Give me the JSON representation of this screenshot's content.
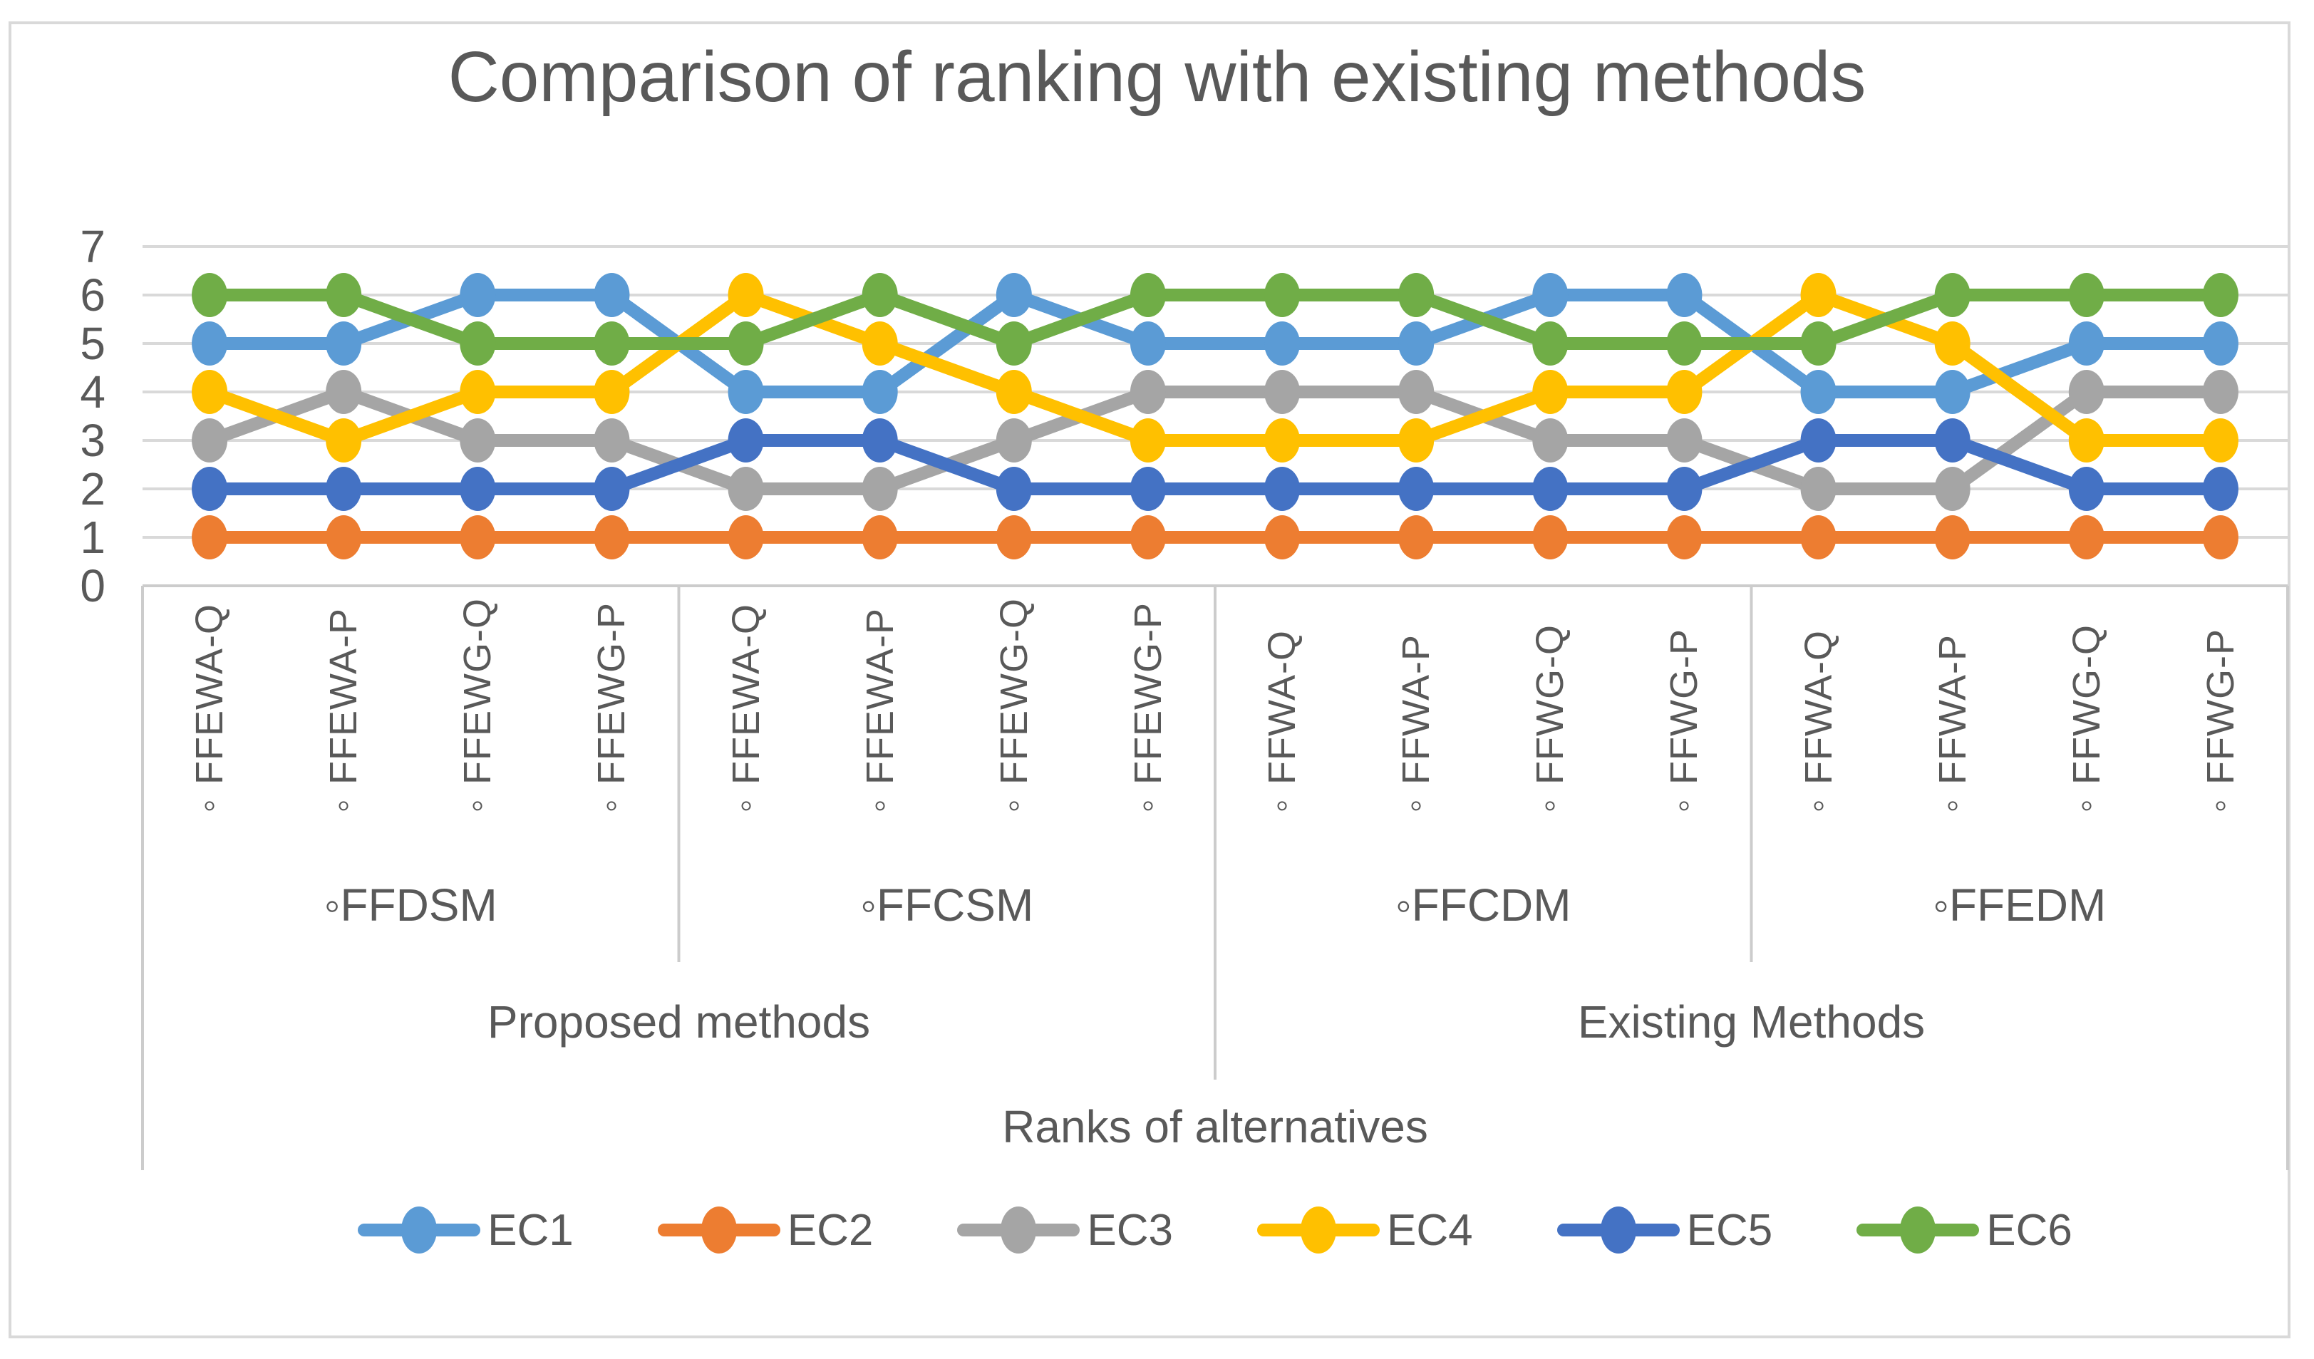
{
  "title": "Comparison of ranking with existing methods",
  "chart_data": {
    "type": "line",
    "title": "Comparison of ranking with existing methods",
    "xlabel": "Ranks of alternatives",
    "ylabel": "",
    "ylim": [
      0,
      7
    ],
    "yticks": [
      0,
      1,
      2,
      3,
      4,
      5,
      6,
      7
    ],
    "grid": true,
    "legend_position": "bottom",
    "marker": "oval",
    "text_color": "#595959",
    "grid_color": "#d9d9d9",
    "axis_color": "#cccccc",
    "categories": [
      "◦FFEWA-Q",
      "◦FFEWA-P",
      "◦FFEWG-Q",
      "◦FFEWG-P",
      "◦FFEWA-Q",
      "◦FFEWA-P",
      "◦FFEWG-Q",
      "◦FFEWG-P",
      "◦FFWA-Q",
      "◦FFWA-P",
      "◦FFWG-Q",
      "◦FFWG-P",
      "◦FFWA-Q",
      "◦FFWA-P",
      "◦FFWG-Q",
      "◦FFWG-P"
    ],
    "group_levels": {
      "families": [
        {
          "label": "◦FFDSM",
          "span": 4
        },
        {
          "label": "◦FFCSM",
          "span": 4
        },
        {
          "label": "◦FFCDM",
          "span": 4
        },
        {
          "label": "◦FFEDM",
          "span": 4
        }
      ],
      "methods": [
        {
          "label": "Proposed methods",
          "span": 8
        },
        {
          "label": "Existing Methods",
          "span": 8
        }
      ]
    },
    "series": [
      {
        "name": "EC1",
        "color": "#5B9BD5",
        "values": [
          5,
          5,
          6,
          6,
          4,
          4,
          6,
          5,
          5,
          5,
          6,
          6,
          4,
          4,
          5,
          5
        ]
      },
      {
        "name": "EC2",
        "color": "#ED7D31",
        "values": [
          1,
          1,
          1,
          1,
          1,
          1,
          1,
          1,
          1,
          1,
          1,
          1,
          1,
          1,
          1,
          1
        ]
      },
      {
        "name": "EC3",
        "color": "#A5A5A5",
        "values": [
          3,
          4,
          3,
          3,
          2,
          2,
          3,
          4,
          4,
          4,
          3,
          3,
          2,
          2,
          4,
          4
        ]
      },
      {
        "name": "EC4",
        "color": "#FFC000",
        "values": [
          4,
          3,
          4,
          4,
          6,
          5,
          4,
          3,
          3,
          3,
          4,
          4,
          6,
          5,
          3,
          3
        ]
      },
      {
        "name": "EC5",
        "color": "#4472C4",
        "values": [
          2,
          2,
          2,
          2,
          3,
          3,
          2,
          2,
          2,
          2,
          2,
          2,
          3,
          3,
          2,
          2
        ]
      },
      {
        "name": "EC6",
        "color": "#70AD47",
        "values": [
          6,
          6,
          5,
          5,
          5,
          6,
          5,
          6,
          6,
          6,
          5,
          5,
          5,
          6,
          6,
          6
        ]
      }
    ]
  }
}
